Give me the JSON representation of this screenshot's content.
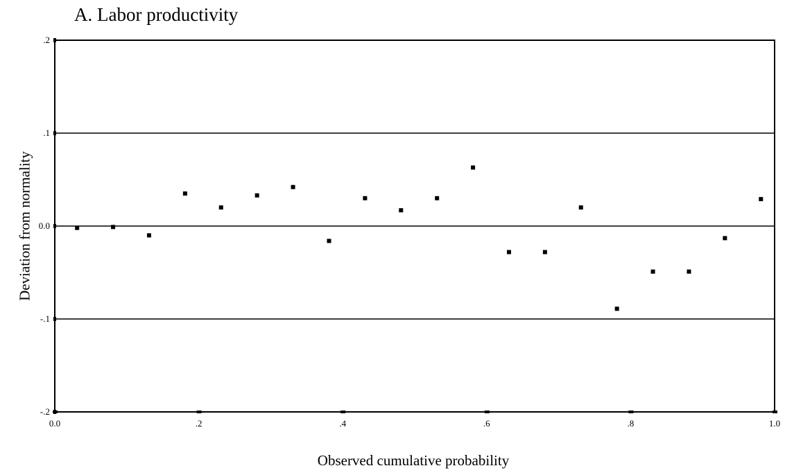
{
  "chart_data": {
    "type": "scatter",
    "title": "A. Labor productivity",
    "xlabel": "Observed cumulative probability",
    "ylabel": "Deviation from normality",
    "xlim": [
      0.0,
      1.0
    ],
    "ylim": [
      -0.2,
      0.2
    ],
    "x_ticks": [
      {
        "value": 0.0,
        "label": "0.0"
      },
      {
        "value": 0.2,
        "label": ".2"
      },
      {
        "value": 0.4,
        "label": ".4"
      },
      {
        "value": 0.6,
        "label": ".6"
      },
      {
        "value": 0.8,
        "label": ".8"
      },
      {
        "value": 1.0,
        "label": "1.0"
      }
    ],
    "y_ticks": [
      {
        "value": 0.2,
        "label": ".2"
      },
      {
        "value": 0.1,
        "label": ".1"
      },
      {
        "value": 0.0,
        "label": "0.0"
      },
      {
        "value": -0.1,
        "label": "-.1"
      },
      {
        "value": -0.2,
        "label": "-.2"
      }
    ],
    "reference_lines_y": [
      0.1,
      0.0,
      -0.1
    ],
    "grid": false,
    "points": [
      {
        "x": 0.031,
        "y": -0.002
      },
      {
        "x": 0.081,
        "y": -0.001
      },
      {
        "x": 0.131,
        "y": -0.01
      },
      {
        "x": 0.181,
        "y": 0.035
      },
      {
        "x": 0.231,
        "y": 0.02
      },
      {
        "x": 0.281,
        "y": 0.033
      },
      {
        "x": 0.331,
        "y": 0.042
      },
      {
        "x": 0.381,
        "y": -0.016
      },
      {
        "x": 0.431,
        "y": 0.03
      },
      {
        "x": 0.481,
        "y": 0.017
      },
      {
        "x": 0.531,
        "y": 0.03
      },
      {
        "x": 0.581,
        "y": 0.063
      },
      {
        "x": 0.631,
        "y": -0.028
      },
      {
        "x": 0.681,
        "y": -0.028
      },
      {
        "x": 0.731,
        "y": 0.02
      },
      {
        "x": 0.781,
        "y": -0.089
      },
      {
        "x": 0.831,
        "y": -0.049
      },
      {
        "x": 0.881,
        "y": -0.049
      },
      {
        "x": 0.931,
        "y": -0.013
      },
      {
        "x": 0.981,
        "y": 0.029
      }
    ]
  }
}
